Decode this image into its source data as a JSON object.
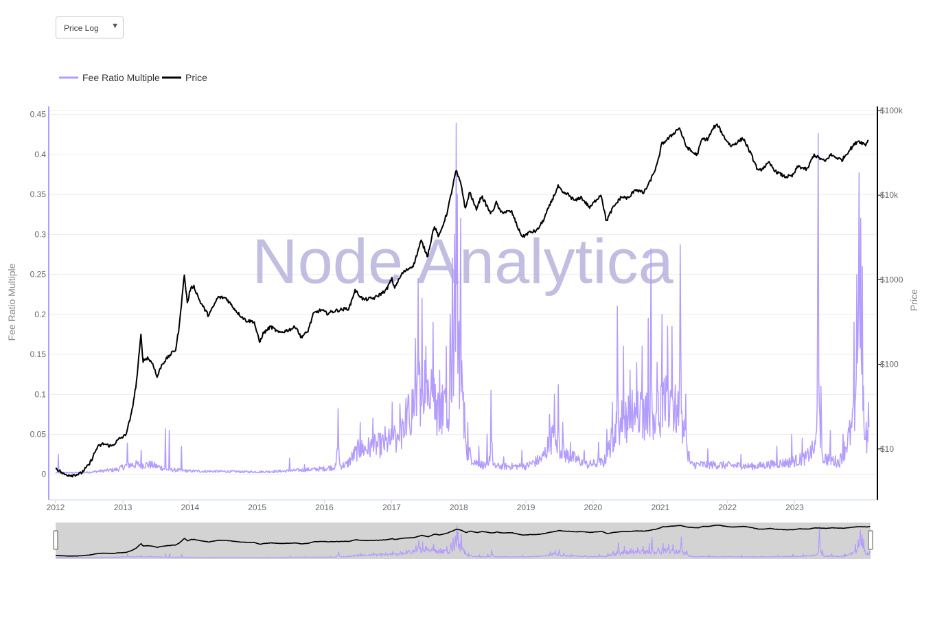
{
  "controls": {
    "scale_select": {
      "selected": "Price Log",
      "arrow_icon": "triangle-down"
    }
  },
  "colors": {
    "fee": "#b39cff",
    "price": "#000000",
    "navigator_bg": "#d3d3d3",
    "grid": "#ececec",
    "watermark": "#b3aedb"
  },
  "watermark": "Node Analytica",
  "chart_data": {
    "type": "line",
    "legend": {
      "position": "top-left",
      "items": [
        "Fee Ratio Multiple",
        "Price"
      ]
    },
    "grid": true,
    "x_ticks": [
      "2012",
      "2013",
      "2014",
      "2015",
      "2016",
      "2017",
      "2018",
      "2019",
      "2020",
      "2021",
      "2022",
      "2023"
    ],
    "y_left": {
      "label": "Fee Ratio Multiple",
      "ticks": [
        "0",
        "0.05",
        "0.1",
        "0.15",
        "0.2",
        "0.25",
        "0.3",
        "0.35",
        "0.4",
        "0.45"
      ],
      "tick_values": [
        0,
        0.05,
        0.1,
        0.15,
        0.2,
        0.25,
        0.3,
        0.35,
        0.4,
        0.45
      ],
      "range": [
        -0.032,
        0.46
      ]
    },
    "y_right": {
      "label": "Price",
      "scale": "log",
      "ticks": [
        "$10",
        "$100",
        "$1000",
        "$10k",
        "$100k"
      ],
      "tick_values": [
        10,
        100,
        1000,
        10000,
        100000
      ],
      "range": [
        2.5,
        100000
      ]
    },
    "x_range": [
      "2012-01-01",
      "2024-02-10"
    ],
    "series": [
      {
        "name": "Price",
        "axis": "right",
        "points": [
          [
            "2012-01-01",
            6.0
          ],
          [
            "2012-02-15",
            5.0
          ],
          [
            "2012-04-01",
            4.9
          ],
          [
            "2012-05-15",
            5.1
          ],
          [
            "2012-07-01",
            6.5
          ],
          [
            "2012-08-15",
            10.5
          ],
          [
            "2012-09-15",
            11.5
          ],
          [
            "2012-11-01",
            10.8
          ],
          [
            "2012-12-15",
            13.3
          ],
          [
            "2013-01-15",
            14.5
          ],
          [
            "2013-02-15",
            25.0
          ],
          [
            "2013-03-15",
            60.0
          ],
          [
            "2013-04-09",
            220.0
          ],
          [
            "2013-04-20",
            110.0
          ],
          [
            "2013-05-15",
            120.0
          ],
          [
            "2013-06-15",
            100.0
          ],
          [
            "2013-07-05",
            70.0
          ],
          [
            "2013-08-01",
            100.0
          ],
          [
            "2013-09-15",
            130.0
          ],
          [
            "2013-10-15",
            150.0
          ],
          [
            "2013-11-05",
            300.0
          ],
          [
            "2013-11-20",
            700.0
          ],
          [
            "2013-11-30",
            1150.0
          ],
          [
            "2013-12-18",
            520.0
          ],
          [
            "2014-01-01",
            760.0
          ],
          [
            "2014-01-20",
            850.0
          ],
          [
            "2014-02-25",
            550.0
          ],
          [
            "2014-04-10",
            380.0
          ],
          [
            "2014-05-01",
            450.0
          ],
          [
            "2014-06-01",
            620.0
          ],
          [
            "2014-07-15",
            610.0
          ],
          [
            "2014-08-15",
            500.0
          ],
          [
            "2014-09-20",
            400.0
          ],
          [
            "2014-11-01",
            330.0
          ],
          [
            "2014-12-15",
            320.0
          ],
          [
            "2015-01-14",
            180.0
          ],
          [
            "2015-02-01",
            230.0
          ],
          [
            "2015-03-15",
            280.0
          ],
          [
            "2015-05-01",
            235.0
          ],
          [
            "2015-07-01",
            260.0
          ],
          [
            "2015-08-01",
            280.0
          ],
          [
            "2015-08-25",
            210.0
          ],
          [
            "2015-10-01",
            240.0
          ],
          [
            "2015-11-04",
            400.0
          ],
          [
            "2015-12-15",
            440.0
          ],
          [
            "2016-01-15",
            400.0
          ],
          [
            "2016-03-01",
            430.0
          ],
          [
            "2016-05-15",
            460.0
          ],
          [
            "2016-06-15",
            750.0
          ],
          [
            "2016-08-01",
            580.0
          ],
          [
            "2016-10-01",
            610.0
          ],
          [
            "2016-12-01",
            750.0
          ],
          [
            "2017-01-03",
            1030.0
          ],
          [
            "2017-01-15",
            800.0
          ],
          [
            "2017-03-01",
            1200.0
          ],
          [
            "2017-05-01",
            1500.0
          ],
          [
            "2017-06-10",
            2900.0
          ],
          [
            "2017-07-15",
            1900.0
          ],
          [
            "2017-08-20",
            4300.0
          ],
          [
            "2017-09-15",
            3200.0
          ],
          [
            "2017-11-01",
            6500.0
          ],
          [
            "2017-12-17",
            19500.0
          ],
          [
            "2018-01-15",
            13000.0
          ],
          [
            "2018-02-06",
            6800.0
          ],
          [
            "2018-03-01",
            11000.0
          ],
          [
            "2018-04-05",
            6800.0
          ],
          [
            "2018-05-05",
            9800.0
          ],
          [
            "2018-06-25",
            6000.0
          ],
          [
            "2018-07-25",
            8200.0
          ],
          [
            "2018-08-15",
            6300.0
          ],
          [
            "2018-10-15",
            6400.0
          ],
          [
            "2018-11-25",
            3800.0
          ],
          [
            "2018-12-15",
            3200.0
          ],
          [
            "2019-01-15",
            3600.0
          ],
          [
            "2019-03-01",
            3800.0
          ],
          [
            "2019-04-05",
            5000.0
          ],
          [
            "2019-05-15",
            8000.0
          ],
          [
            "2019-06-26",
            12800.0
          ],
          [
            "2019-07-20",
            10500.0
          ],
          [
            "2019-08-15",
            10300.0
          ],
          [
            "2019-09-25",
            8500.0
          ],
          [
            "2019-10-26",
            9500.0
          ],
          [
            "2019-12-15",
            7100.0
          ],
          [
            "2020-01-15",
            8700.0
          ],
          [
            "2020-02-14",
            10200.0
          ],
          [
            "2020-03-13",
            4900.0
          ],
          [
            "2020-04-15",
            6900.0
          ],
          [
            "2020-06-01",
            9500.0
          ],
          [
            "2020-07-15",
            9200.0
          ],
          [
            "2020-08-15",
            11800.0
          ],
          [
            "2020-10-01",
            10600.0
          ],
          [
            "2020-11-01",
            13800.0
          ],
          [
            "2020-12-15",
            23000.0
          ],
          [
            "2021-01-08",
            40000.0
          ],
          [
            "2021-02-15",
            47000.0
          ],
          [
            "2021-04-14",
            63000.0
          ],
          [
            "2021-05-20",
            38000.0
          ],
          [
            "2021-06-25",
            32000.0
          ],
          [
            "2021-07-20",
            30000.0
          ],
          [
            "2021-08-15",
            46000.0
          ],
          [
            "2021-09-15",
            46000.0
          ],
          [
            "2021-10-20",
            64000.0
          ],
          [
            "2021-11-10",
            67000.0
          ],
          [
            "2021-12-15",
            48000.0
          ],
          [
            "2022-01-20",
            38000.0
          ],
          [
            "2022-03-28",
            47000.0
          ],
          [
            "2022-05-10",
            30000.0
          ],
          [
            "2022-06-18",
            19000.0
          ],
          [
            "2022-08-15",
            24000.0
          ],
          [
            "2022-09-20",
            19000.0
          ],
          [
            "2022-11-09",
            16500.0
          ],
          [
            "2022-12-20",
            16800.0
          ],
          [
            "2023-01-20",
            22000.0
          ],
          [
            "2023-03-10",
            20000.0
          ],
          [
            "2023-04-15",
            30000.0
          ],
          [
            "2023-06-15",
            25000.0
          ],
          [
            "2023-07-15",
            30000.0
          ],
          [
            "2023-09-15",
            26000.0
          ],
          [
            "2023-10-25",
            34000.0
          ],
          [
            "2023-12-10",
            44000.0
          ],
          [
            "2024-01-22",
            39500.0
          ],
          [
            "2024-02-10",
            47500.0
          ]
        ]
      },
      {
        "name": "Fee Ratio Multiple",
        "axis": "left",
        "baseline_points": [
          [
            "2012-01-01",
            0.002
          ],
          [
            "2012-06-01",
            0.002
          ],
          [
            "2012-12-01",
            0.006
          ],
          [
            "2013-02-01",
            0.012
          ],
          [
            "2013-06-01",
            0.012
          ],
          [
            "2013-09-01",
            0.006
          ],
          [
            "2014-01-01",
            0.004
          ],
          [
            "2015-01-01",
            0.003
          ],
          [
            "2015-06-01",
            0.004
          ],
          [
            "2016-01-01",
            0.007
          ],
          [
            "2016-05-01",
            0.012
          ],
          [
            "2016-07-01",
            0.03
          ],
          [
            "2016-12-01",
            0.038
          ],
          [
            "2017-03-01",
            0.05
          ],
          [
            "2017-05-01",
            0.09
          ],
          [
            "2017-07-01",
            0.12
          ],
          [
            "2017-09-01",
            0.08
          ],
          [
            "2017-11-01",
            0.09
          ],
          [
            "2017-12-20",
            0.17
          ],
          [
            "2018-01-15",
            0.12
          ],
          [
            "2018-02-15",
            0.03
          ],
          [
            "2018-04-01",
            0.015
          ],
          [
            "2018-06-01",
            0.01
          ],
          [
            "2019-01-01",
            0.01
          ],
          [
            "2019-04-01",
            0.02
          ],
          [
            "2019-06-01",
            0.05
          ],
          [
            "2019-08-01",
            0.025
          ],
          [
            "2019-12-01",
            0.012
          ],
          [
            "2020-03-01",
            0.015
          ],
          [
            "2020-05-01",
            0.055
          ],
          [
            "2020-06-15",
            0.07
          ],
          [
            "2020-08-01",
            0.075
          ],
          [
            "2020-11-01",
            0.075
          ],
          [
            "2021-01-01",
            0.08
          ],
          [
            "2021-03-01",
            0.09
          ],
          [
            "2021-05-01",
            0.06
          ],
          [
            "2021-06-15",
            0.012
          ],
          [
            "2021-10-01",
            0.012
          ],
          [
            "2022-06-01",
            0.01
          ],
          [
            "2022-12-01",
            0.015
          ],
          [
            "2023-03-01",
            0.02
          ],
          [
            "2023-05-01",
            0.035
          ],
          [
            "2023-06-15",
            0.02
          ],
          [
            "2023-09-01",
            0.015
          ],
          [
            "2023-11-15",
            0.06
          ],
          [
            "2023-12-20",
            0.16
          ],
          [
            "2024-01-20",
            0.04
          ],
          [
            "2024-02-10",
            0.05
          ]
        ],
        "spikes": [
          [
            "2012-01-15",
            0.025
          ],
          [
            "2013-01-25",
            0.039
          ],
          [
            "2013-04-10",
            0.03
          ],
          [
            "2013-08-20",
            0.057
          ],
          [
            "2013-09-10",
            0.055
          ],
          [
            "2013-11-15",
            0.035
          ],
          [
            "2015-06-25",
            0.02
          ],
          [
            "2015-09-15",
            0.012
          ],
          [
            "2016-03-15",
            0.082
          ],
          [
            "2016-07-15",
            0.065
          ],
          [
            "2016-09-20",
            0.07
          ],
          [
            "2016-11-25",
            0.06
          ],
          [
            "2017-01-05",
            0.09
          ],
          [
            "2017-02-15",
            0.088
          ],
          [
            "2017-03-20",
            0.095
          ],
          [
            "2017-05-10",
            0.17
          ],
          [
            "2017-05-25",
            0.245
          ],
          [
            "2017-06-15",
            0.22
          ],
          [
            "2017-07-05",
            0.16
          ],
          [
            "2017-08-15",
            0.19
          ],
          [
            "2017-09-20",
            0.13
          ],
          [
            "2017-10-25",
            0.16
          ],
          [
            "2017-11-15",
            0.2
          ],
          [
            "2017-11-28",
            0.27
          ],
          [
            "2017-12-10",
            0.3
          ],
          [
            "2017-12-18",
            0.439
          ],
          [
            "2017-12-25",
            0.35
          ],
          [
            "2018-01-10",
            0.32
          ],
          [
            "2018-01-25",
            0.1
          ],
          [
            "2018-02-20",
            0.065
          ],
          [
            "2018-04-20",
            0.035
          ],
          [
            "2018-06-05",
            0.05
          ],
          [
            "2018-06-25",
            0.105
          ],
          [
            "2018-09-01",
            0.022
          ],
          [
            "2018-12-10",
            0.03
          ],
          [
            "2019-05-10",
            0.075
          ],
          [
            "2019-06-05",
            0.1
          ],
          [
            "2019-06-25",
            0.112
          ],
          [
            "2019-07-20",
            0.065
          ],
          [
            "2019-09-01",
            0.04
          ],
          [
            "2019-11-15",
            0.03
          ],
          [
            "2020-02-01",
            0.04
          ],
          [
            "2020-03-15",
            0.056
          ],
          [
            "2020-04-15",
            0.09
          ],
          [
            "2020-05-12",
            0.21
          ],
          [
            "2020-06-15",
            0.16
          ],
          [
            "2020-07-20",
            0.13
          ],
          [
            "2020-08-25",
            0.14
          ],
          [
            "2020-09-25",
            0.16
          ],
          [
            "2020-10-27",
            0.195
          ],
          [
            "2020-11-12",
            0.282
          ],
          [
            "2020-12-15",
            0.14
          ],
          [
            "2021-01-10",
            0.2
          ],
          [
            "2021-02-10",
            0.185
          ],
          [
            "2021-03-05",
            0.185
          ],
          [
            "2021-04-20",
            0.287
          ],
          [
            "2021-05-20",
            0.1
          ],
          [
            "2021-09-15",
            0.032
          ],
          [
            "2022-03-15",
            0.025
          ],
          [
            "2022-09-25",
            0.035
          ],
          [
            "2022-12-15",
            0.05
          ],
          [
            "2023-02-10",
            0.045
          ],
          [
            "2023-05-08",
            0.426
          ],
          [
            "2023-05-25",
            0.11
          ],
          [
            "2023-07-15",
            0.055
          ],
          [
            "2023-09-20",
            0.05
          ],
          [
            "2023-11-20",
            0.19
          ],
          [
            "2023-12-05",
            0.25
          ],
          [
            "2023-12-16",
            0.377
          ],
          [
            "2023-12-25",
            0.32
          ],
          [
            "2024-01-05",
            0.26
          ],
          [
            "2024-01-25",
            0.065
          ],
          [
            "2024-02-05",
            0.09
          ]
        ]
      }
    ]
  }
}
